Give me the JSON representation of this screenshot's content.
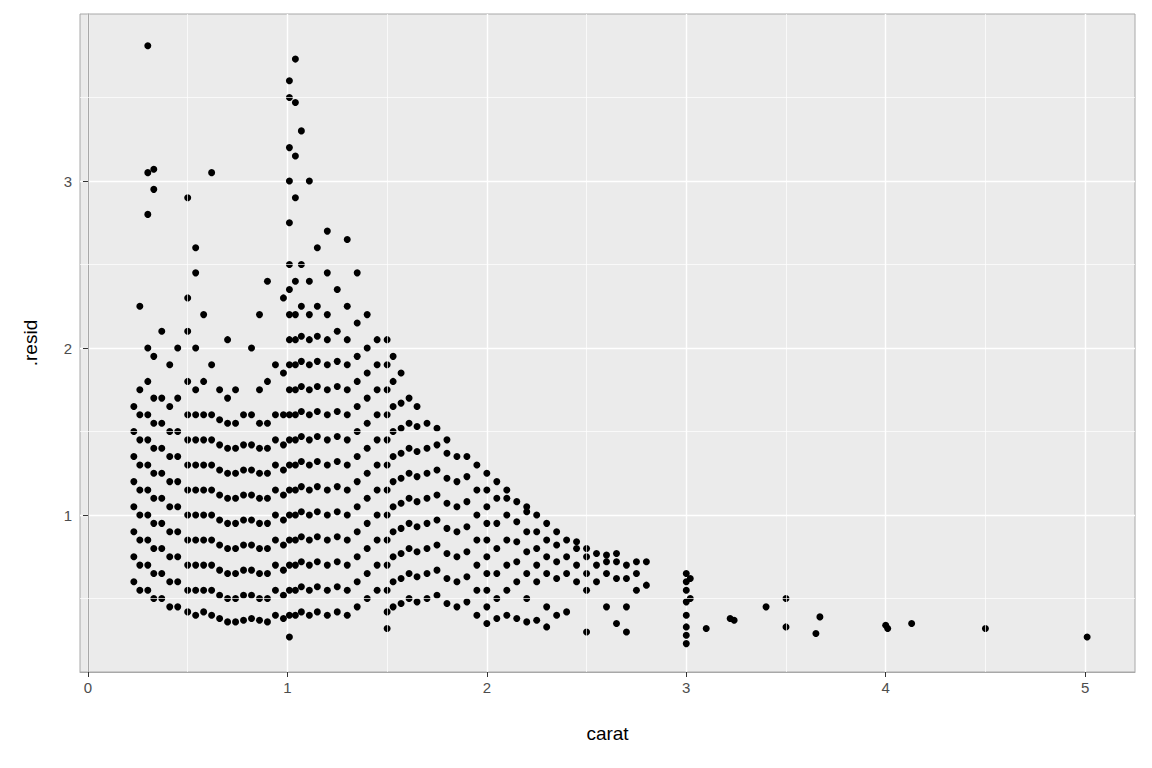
{
  "chart_data": {
    "type": "scatter",
    "x_label": "carat",
    "y_label": ".resid",
    "color": "#000000",
    "marker": "circle",
    "grid": true,
    "xlim": [
      -0.04,
      5.25
    ],
    "xticks": [
      0,
      1,
      2,
      3,
      4,
      5
    ],
    "ylim": [
      0.06,
      4.0
    ],
    "yticks": [
      1,
      2,
      3
    ],
    "x": [
      0.23,
      0.23,
      0.23,
      0.23,
      0.23,
      0.23,
      0.23,
      0.23,
      0.26,
      0.26,
      0.26,
      0.26,
      0.26,
      0.26,
      0.26,
      0.26,
      0.26,
      0.26,
      0.3,
      0.3,
      0.3,
      0.3,
      0.3,
      0.3,
      0.3,
      0.3,
      0.3,
      0.3,
      0.3,
      0.3,
      0.3,
      0.33,
      0.33,
      0.33,
      0.33,
      0.33,
      0.33,
      0.33,
      0.33,
      0.33,
      0.33,
      0.33,
      0.33,
      0.37,
      0.37,
      0.37,
      0.37,
      0.37,
      0.37,
      0.37,
      0.37,
      0.37,
      0.37,
      0.41,
      0.41,
      0.41,
      0.41,
      0.41,
      0.41,
      0.41,
      0.41,
      0.41,
      0.41,
      0.45,
      0.45,
      0.45,
      0.45,
      0.45,
      0.45,
      0.45,
      0.45,
      0.45,
      0.45,
      0.5,
      0.5,
      0.5,
      0.5,
      0.5,
      0.5,
      0.5,
      0.5,
      0.5,
      0.5,
      0.5,
      0.5,
      0.5,
      0.54,
      0.54,
      0.54,
      0.54,
      0.54,
      0.54,
      0.54,
      0.54,
      0.54,
      0.54,
      0.54,
      0.54,
      0.54,
      0.58,
      0.58,
      0.58,
      0.58,
      0.58,
      0.58,
      0.58,
      0.58,
      0.58,
      0.58,
      0.58,
      0.62,
      0.62,
      0.62,
      0.62,
      0.62,
      0.62,
      0.62,
      0.62,
      0.62,
      0.62,
      0.62,
      0.66,
      0.66,
      0.66,
      0.66,
      0.66,
      0.66,
      0.66,
      0.66,
      0.66,
      0.66,
      0.7,
      0.7,
      0.7,
      0.7,
      0.7,
      0.7,
      0.7,
      0.7,
      0.7,
      0.7,
      0.7,
      0.74,
      0.74,
      0.74,
      0.74,
      0.74,
      0.74,
      0.74,
      0.74,
      0.74,
      0.74,
      0.78,
      0.78,
      0.78,
      0.78,
      0.78,
      0.78,
      0.78,
      0.78,
      0.78,
      0.82,
      0.82,
      0.82,
      0.82,
      0.82,
      0.82,
      0.82,
      0.82,
      0.82,
      0.82,
      0.86,
      0.86,
      0.86,
      0.86,
      0.86,
      0.86,
      0.86,
      0.86,
      0.86,
      0.86,
      0.86,
      0.9,
      0.9,
      0.9,
      0.9,
      0.9,
      0.9,
      0.9,
      0.9,
      0.9,
      0.9,
      0.9,
      0.94,
      0.94,
      0.94,
      0.94,
      0.94,
      0.94,
      0.94,
      0.94,
      0.94,
      0.94,
      0.98,
      0.98,
      0.98,
      0.98,
      0.98,
      0.98,
      0.98,
      0.98,
      0.98,
      0.98,
      0.98,
      1.01,
      1.01,
      1.01,
      1.01,
      1.01,
      1.01,
      1.01,
      1.01,
      1.01,
      1.01,
      1.01,
      1.01,
      1.01,
      1.01,
      1.01,
      1.01,
      1.01,
      1.01,
      1.01,
      1.01,
      1.01,
      1.04,
      1.04,
      1.04,
      1.04,
      1.04,
      1.04,
      1.04,
      1.04,
      1.04,
      1.04,
      1.04,
      1.04,
      1.04,
      1.04,
      1.04,
      1.04,
      1.04,
      1.04,
      1.07,
      1.07,
      1.07,
      1.07,
      1.07,
      1.07,
      1.07,
      1.07,
      1.07,
      1.07,
      1.07,
      1.07,
      1.07,
      1.07,
      1.07,
      1.11,
      1.11,
      1.11,
      1.11,
      1.11,
      1.11,
      1.11,
      1.11,
      1.11,
      1.11,
      1.11,
      1.11,
      1.11,
      1.11,
      1.11,
      1.15,
      1.15,
      1.15,
      1.15,
      1.15,
      1.15,
      1.15,
      1.15,
      1.15,
      1.15,
      1.15,
      1.15,
      1.15,
      1.15,
      1.2,
      1.2,
      1.2,
      1.2,
      1.2,
      1.2,
      1.2,
      1.2,
      1.2,
      1.2,
      1.2,
      1.2,
      1.2,
      1.2,
      1.2,
      1.25,
      1.25,
      1.25,
      1.25,
      1.25,
      1.25,
      1.25,
      1.25,
      1.25,
      1.25,
      1.25,
      1.25,
      1.25,
      1.3,
      1.3,
      1.3,
      1.3,
      1.3,
      1.3,
      1.3,
      1.3,
      1.3,
      1.3,
      1.3,
      1.3,
      1.3,
      1.3,
      1.35,
      1.35,
      1.35,
      1.35,
      1.35,
      1.35,
      1.35,
      1.35,
      1.35,
      1.35,
      1.35,
      1.35,
      1.35,
      1.4,
      1.4,
      1.4,
      1.4,
      1.4,
      1.4,
      1.4,
      1.4,
      1.4,
      1.4,
      1.4,
      1.4,
      1.45,
      1.45,
      1.45,
      1.45,
      1.45,
      1.45,
      1.45,
      1.45,
      1.45,
      1.45,
      1.45,
      1.5,
      1.5,
      1.5,
      1.5,
      1.5,
      1.5,
      1.5,
      1.5,
      1.5,
      1.5,
      1.5,
      1.5,
      1.5,
      1.53,
      1.53,
      1.53,
      1.53,
      1.53,
      1.53,
      1.53,
      1.53,
      1.53,
      1.53,
      1.53,
      1.57,
      1.57,
      1.57,
      1.57,
      1.57,
      1.57,
      1.57,
      1.57,
      1.57,
      1.57,
      1.61,
      1.61,
      1.61,
      1.61,
      1.61,
      1.61,
      1.61,
      1.61,
      1.61,
      1.65,
      1.65,
      1.65,
      1.65,
      1.65,
      1.65,
      1.65,
      1.65,
      1.65,
      1.7,
      1.7,
      1.7,
      1.7,
      1.7,
      1.7,
      1.7,
      1.7,
      1.75,
      1.75,
      1.75,
      1.75,
      1.75,
      1.75,
      1.75,
      1.75,
      1.8,
      1.8,
      1.8,
      1.8,
      1.8,
      1.8,
      1.8,
      1.8,
      1.85,
      1.85,
      1.85,
      1.85,
      1.85,
      1.85,
      1.85,
      1.9,
      1.9,
      1.9,
      1.9,
      1.9,
      1.9,
      1.9,
      1.95,
      1.95,
      1.95,
      1.95,
      1.95,
      1.95,
      1.95,
      2.0,
      2.0,
      2.0,
      2.0,
      2.0,
      2.0,
      2.0,
      2.0,
      2.0,
      2.0,
      2.05,
      2.05,
      2.05,
      2.05,
      2.05,
      2.05,
      2.05,
      2.1,
      2.1,
      2.1,
      2.1,
      2.1,
      2.1,
      2.1,
      2.15,
      2.15,
      2.15,
      2.15,
      2.15,
      2.15,
      2.2,
      2.2,
      2.2,
      2.2,
      2.2,
      2.2,
      2.2,
      2.25,
      2.25,
      2.25,
      2.25,
      2.25,
      2.25,
      2.3,
      2.3,
      2.3,
      2.3,
      2.3,
      2.3,
      2.35,
      2.35,
      2.35,
      2.35,
      2.35,
      2.4,
      2.4,
      2.4,
      2.4,
      2.45,
      2.45,
      2.45,
      2.45,
      2.5,
      2.5,
      2.5,
      2.5,
      2.5,
      2.55,
      2.55,
      2.55,
      2.6,
      2.6,
      2.6,
      2.6,
      2.65,
      2.65,
      2.65,
      2.65,
      2.7,
      2.7,
      2.7,
      2.7,
      2.75,
      2.75,
      2.75,
      2.8,
      2.8,
      3.0,
      3.0,
      3.0,
      3.0,
      3.0,
      3.0,
      3.0,
      3.0,
      3.02,
      3.02,
      3.1,
      3.22,
      3.24,
      3.4,
      3.5,
      3.5,
      3.65,
      3.67,
      4.0,
      4.01,
      4.13,
      4.5,
      5.01
    ],
    "values": [
      0.6,
      0.75,
      0.9,
      1.05,
      1.2,
      1.35,
      1.5,
      1.65,
      0.55,
      0.7,
      0.85,
      1.0,
      1.15,
      1.3,
      1.45,
      1.6,
      1.75,
      2.25,
      0.55,
      0.7,
      0.85,
      1.0,
      1.15,
      1.3,
      1.45,
      1.6,
      1.8,
      2.0,
      2.8,
      3.05,
      3.81,
      0.5,
      0.65,
      0.8,
      0.95,
      1.1,
      1.25,
      1.4,
      1.55,
      1.7,
      1.95,
      2.95,
      3.07,
      0.5,
      0.65,
      0.8,
      0.95,
      1.1,
      1.25,
      1.4,
      1.55,
      1.7,
      2.1,
      0.45,
      0.6,
      0.75,
      0.9,
      1.05,
      1.2,
      1.35,
      1.5,
      1.65,
      1.9,
      0.45,
      0.6,
      0.75,
      0.9,
      1.05,
      1.2,
      1.35,
      1.5,
      1.7,
      2.0,
      0.42,
      0.55,
      0.7,
      0.85,
      1.0,
      1.15,
      1.3,
      1.45,
      1.6,
      1.8,
      2.1,
      2.3,
      2.9,
      0.4,
      0.55,
      0.7,
      0.85,
      1.0,
      1.15,
      1.3,
      1.45,
      1.6,
      1.75,
      2.0,
      2.45,
      2.6,
      0.42,
      0.55,
      0.7,
      0.85,
      1.0,
      1.15,
      1.3,
      1.45,
      1.6,
      1.8,
      2.2,
      0.4,
      0.55,
      0.7,
      0.85,
      1.0,
      1.15,
      1.3,
      1.45,
      1.6,
      1.9,
      3.05,
      0.38,
      0.52,
      0.67,
      0.82,
      0.97,
      1.12,
      1.27,
      1.42,
      1.57,
      1.75,
      0.36,
      0.5,
      0.65,
      0.8,
      0.95,
      1.1,
      1.25,
      1.4,
      1.55,
      1.7,
      2.05,
      0.36,
      0.5,
      0.65,
      0.8,
      0.95,
      1.1,
      1.25,
      1.4,
      1.55,
      1.75,
      0.37,
      0.52,
      0.67,
      0.82,
      0.97,
      1.12,
      1.27,
      1.42,
      1.6,
      0.38,
      0.52,
      0.67,
      0.82,
      0.97,
      1.12,
      1.27,
      1.42,
      1.6,
      2.0,
      0.37,
      0.5,
      0.65,
      0.8,
      0.95,
      1.1,
      1.25,
      1.4,
      1.55,
      1.75,
      2.2,
      0.36,
      0.5,
      0.65,
      0.8,
      0.95,
      1.1,
      1.25,
      1.4,
      1.55,
      1.8,
      2.4,
      0.4,
      0.55,
      0.7,
      0.85,
      1.0,
      1.15,
      1.3,
      1.45,
      1.6,
      1.9,
      0.38,
      0.52,
      0.67,
      0.82,
      0.97,
      1.12,
      1.27,
      1.42,
      1.6,
      1.85,
      2.3,
      0.27,
      0.4,
      0.55,
      0.7,
      0.85,
      1.0,
      1.15,
      1.3,
      1.45,
      1.6,
      1.75,
      1.9,
      2.05,
      2.2,
      2.35,
      2.5,
      2.75,
      3.0,
      3.2,
      3.5,
      3.6,
      0.4,
      0.55,
      0.7,
      0.85,
      1.0,
      1.15,
      1.3,
      1.45,
      1.6,
      1.75,
      1.9,
      2.05,
      2.2,
      2.4,
      2.9,
      3.15,
      3.47,
      3.73,
      0.42,
      0.57,
      0.72,
      0.87,
      1.02,
      1.17,
      1.32,
      1.47,
      1.62,
      1.77,
      1.92,
      2.07,
      2.25,
      2.5,
      3.3,
      0.4,
      0.55,
      0.7,
      0.85,
      1.0,
      1.15,
      1.3,
      1.45,
      1.6,
      1.75,
      1.9,
      2.05,
      2.2,
      2.4,
      3.0,
      0.42,
      0.57,
      0.72,
      0.87,
      1.02,
      1.17,
      1.32,
      1.47,
      1.62,
      1.77,
      1.92,
      2.07,
      2.25,
      2.6,
      0.4,
      0.55,
      0.7,
      0.85,
      1.0,
      1.15,
      1.3,
      1.45,
      1.6,
      1.75,
      1.9,
      2.05,
      2.2,
      2.45,
      2.7,
      0.42,
      0.57,
      0.72,
      0.87,
      1.02,
      1.17,
      1.32,
      1.47,
      1.62,
      1.77,
      1.92,
      2.1,
      2.35,
      0.4,
      0.55,
      0.7,
      0.85,
      1.0,
      1.15,
      1.3,
      1.45,
      1.6,
      1.75,
      1.9,
      2.05,
      2.25,
      2.65,
      0.45,
      0.6,
      0.75,
      0.9,
      1.05,
      1.2,
      1.35,
      1.5,
      1.65,
      1.8,
      1.95,
      2.15,
      2.45,
      0.5,
      0.65,
      0.8,
      0.95,
      1.1,
      1.25,
      1.4,
      1.55,
      1.7,
      1.85,
      2.0,
      2.2,
      0.55,
      0.7,
      0.85,
      1.0,
      1.15,
      1.3,
      1.45,
      1.6,
      1.75,
      1.9,
      2.05,
      0.32,
      0.42,
      0.55,
      0.7,
      0.85,
      1.0,
      1.15,
      1.3,
      1.45,
      1.6,
      1.75,
      1.9,
      2.05,
      0.45,
      0.6,
      0.75,
      0.9,
      1.05,
      1.2,
      1.35,
      1.5,
      1.65,
      1.8,
      1.95,
      0.47,
      0.62,
      0.77,
      0.92,
      1.07,
      1.22,
      1.37,
      1.52,
      1.67,
      1.85,
      0.5,
      0.65,
      0.8,
      0.95,
      1.1,
      1.25,
      1.4,
      1.55,
      1.7,
      0.48,
      0.63,
      0.78,
      0.93,
      1.08,
      1.23,
      1.38,
      1.53,
      1.65,
      0.5,
      0.65,
      0.8,
      0.95,
      1.1,
      1.25,
      1.4,
      1.55,
      0.52,
      0.67,
      0.82,
      0.97,
      1.12,
      1.27,
      1.42,
      1.52,
      0.47,
      0.62,
      0.77,
      0.92,
      1.07,
      1.22,
      1.37,
      1.45,
      0.45,
      0.6,
      0.75,
      0.9,
      1.05,
      1.2,
      1.35,
      0.48,
      0.63,
      0.78,
      0.93,
      1.08,
      1.23,
      1.35,
      0.4,
      0.55,
      0.7,
      0.85,
      1.0,
      1.15,
      1.3,
      0.35,
      0.45,
      0.55,
      0.65,
      0.75,
      0.85,
      0.95,
      1.05,
      1.15,
      1.25,
      0.38,
      0.5,
      0.65,
      0.8,
      0.95,
      1.1,
      1.2,
      0.4,
      0.55,
      0.7,
      0.85,
      1.0,
      1.1,
      1.15,
      0.38,
      0.6,
      0.72,
      0.84,
      0.96,
      1.08,
      0.36,
      0.5,
      0.65,
      0.78,
      0.9,
      1.02,
      1.05,
      0.37,
      0.6,
      0.7,
      0.8,
      0.9,
      1.0,
      0.33,
      0.45,
      0.65,
      0.75,
      0.85,
      0.95,
      0.4,
      0.62,
      0.72,
      0.82,
      0.9,
      0.42,
      0.65,
      0.75,
      0.85,
      0.6,
      0.7,
      0.8,
      0.84,
      0.3,
      0.55,
      0.65,
      0.75,
      0.8,
      0.6,
      0.7,
      0.77,
      0.45,
      0.65,
      0.72,
      0.76,
      0.35,
      0.62,
      0.72,
      0.77,
      0.3,
      0.45,
      0.62,
      0.7,
      0.55,
      0.65,
      0.72,
      0.58,
      0.72,
      0.23,
      0.28,
      0.33,
      0.4,
      0.48,
      0.55,
      0.6,
      0.65,
      0.5,
      0.62,
      0.32,
      0.38,
      0.37,
      0.45,
      0.5,
      0.33,
      0.29,
      0.39,
      0.34,
      0.32,
      0.35,
      0.32,
      0.27
    ]
  }
}
